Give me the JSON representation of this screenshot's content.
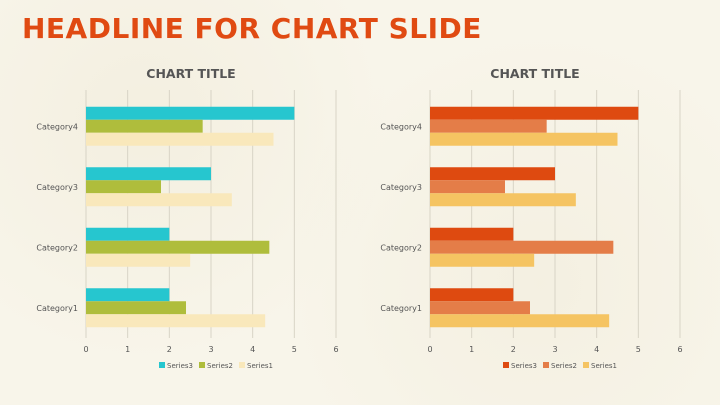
{
  "slide": {
    "headline": "HEADLINE FOR CHART SLIDE"
  },
  "chart_data": [
    {
      "type": "bar",
      "orientation": "horizontal",
      "title": "CHART TITLE",
      "categories": [
        "Category1",
        "Category2",
        "Category3",
        "Category4"
      ],
      "series": [
        {
          "name": "Series3",
          "values": [
            2,
            2,
            3,
            5
          ],
          "color": "#26c6cf"
        },
        {
          "name": "Series2",
          "values": [
            2.4,
            4.4,
            1.8,
            2.8
          ],
          "color": "#afbd3c"
        },
        {
          "name": "Series1",
          "values": [
            4.3,
            2.5,
            3.5,
            4.5
          ],
          "color": "#f9e8bb"
        }
      ],
      "xlim": [
        0,
        6
      ],
      "x_ticks": [
        "0",
        "1",
        "2",
        "3",
        "4",
        "5",
        "6"
      ],
      "grid": "vertical",
      "legend": "bottom"
    },
    {
      "type": "bar",
      "orientation": "horizontal",
      "title": "CHART TITLE",
      "categories": [
        "Category1",
        "Category2",
        "Category3",
        "Category4"
      ],
      "series": [
        {
          "name": "Series3",
          "values": [
            2,
            2,
            3,
            5
          ],
          "color": "#de4a10"
        },
        {
          "name": "Series2",
          "values": [
            2.4,
            4.4,
            1.8,
            2.8
          ],
          "color": "#e47d48"
        },
        {
          "name": "Series1",
          "values": [
            4.3,
            2.5,
            3.5,
            4.5
          ],
          "color": "#f5c462"
        }
      ],
      "xlim": [
        0,
        6
      ],
      "x_ticks": [
        "0",
        "1",
        "2",
        "3",
        "4",
        "5",
        "6"
      ],
      "grid": "vertical",
      "legend": "bottom"
    }
  ]
}
